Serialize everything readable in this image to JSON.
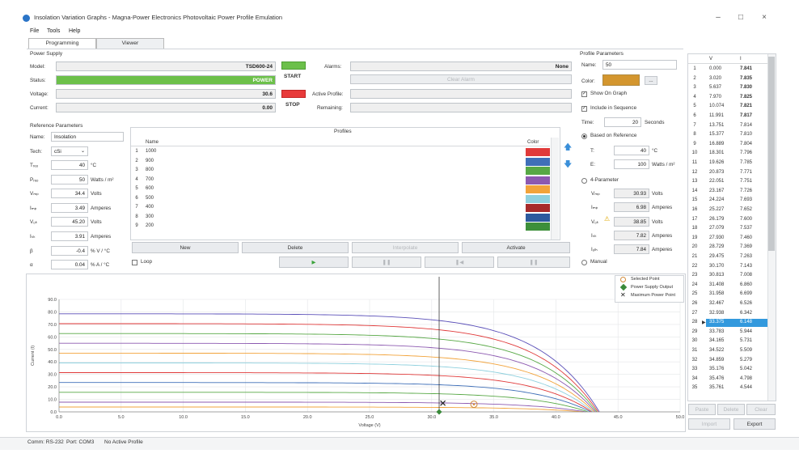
{
  "window": {
    "title": "Insolation Variation Graphs - Magna-Power Electronics Photovoltaic Power Profile Emulation",
    "minimize": "–",
    "maximize": "□",
    "close": "×"
  },
  "menu": [
    "File",
    "Tools",
    "Help"
  ],
  "tabs": [
    "Programming",
    "Viewer"
  ],
  "power_supply": {
    "section": "Power Supply",
    "model_label": "Model:",
    "model": "TSD600-24",
    "status_label": "Status:",
    "status": "POWER",
    "voltage_label": "Voltage:",
    "voltage": "30.6",
    "current_label": "Current:",
    "current": "0.00",
    "start": "START",
    "stop": "STOP",
    "alarms_label": "Alarms:",
    "alarms": "None",
    "clear_alarm": "Clear Alarm",
    "active_profile_label": "Active Profile:",
    "remaining_label": "Remaining:",
    "colors": {
      "green": "#6cc04a",
      "red": "#e83a3a"
    }
  },
  "reference": {
    "section": "Reference Parameters",
    "name_label": "Name:",
    "name": "Insolation",
    "tech_label": "Tech:",
    "tech": "cSi",
    "rows": [
      {
        "label": "Tᵣₑₒ",
        "value": "40",
        "unit": "°C"
      },
      {
        "label": "Pᵣₑₒ",
        "value": "50",
        "unit": "Watts / m²"
      },
      {
        "label": "Vₘₚ",
        "value": "34.4",
        "unit": "Volts"
      },
      {
        "label": "Iₘₚ",
        "value": "3.49",
        "unit": "Amperes"
      },
      {
        "label": "Vₒₖ",
        "value": "45.20",
        "unit": "Volts"
      },
      {
        "label": "Iₛₖ",
        "value": "3.91",
        "unit": "Amperes"
      },
      {
        "label": "β",
        "value": "-0.4",
        "unit": "% V / °C"
      },
      {
        "label": "α",
        "value": "0.04",
        "unit": "% A / °C"
      }
    ]
  },
  "profiles": {
    "title": "Profiles",
    "col_name": "Name",
    "col_color": "Color",
    "rows": [
      {
        "num": "1",
        "name": "1000",
        "color": "#e03a3a"
      },
      {
        "num": "2",
        "name": "900",
        "color": "#3f6fb8"
      },
      {
        "num": "3",
        "name": "800",
        "color": "#57a845"
      },
      {
        "num": "4",
        "name": "700",
        "color": "#8c59b0"
      },
      {
        "num": "5",
        "name": "600",
        "color": "#f2a33a"
      },
      {
        "num": "6",
        "name": "500",
        "color": "#8fd0de"
      },
      {
        "num": "7",
        "name": "400",
        "color": "#a62b2b"
      },
      {
        "num": "8",
        "name": "300",
        "color": "#2d5a9e"
      },
      {
        "num": "9",
        "name": "200",
        "color": "#3d8f3a"
      }
    ],
    "buttons": [
      "New",
      "Delete",
      "Interpolate",
      "Activate"
    ],
    "loop_label": "Loop"
  },
  "profile_params": {
    "section": "Profile Parameters",
    "name_label": "Name:",
    "name": "50",
    "color_label": "Color:",
    "color": "#d4962e",
    "more": "...",
    "show_on_graph": "Show On Graph",
    "include_in_sequence": "Include in Sequence",
    "time_label": "Time:",
    "time": "20",
    "time_unit": "Seconds",
    "based_on_reference": "Based on Reference",
    "t_label": "T:",
    "t": "40",
    "t_unit": "°C",
    "e_label": "E:",
    "e": "100",
    "e_unit": "Watts / m²",
    "four_param": "4-Parameter",
    "fp_rows": [
      {
        "label": "Vₘₚ",
        "value": "30.93",
        "unit": "Volts"
      },
      {
        "label": "Iₘₚ",
        "value": "6.98",
        "unit": "Amperes"
      },
      {
        "label": "Vₒₖ",
        "value": "38.85",
        "unit": "Volts"
      },
      {
        "label": "Iₛₖ",
        "value": "7.82",
        "unit": "Amperes"
      },
      {
        "label": "Iₒₗₕ",
        "value": "7.84",
        "unit": "Amperes"
      }
    ],
    "manual": "Manual"
  },
  "vi_table": {
    "col_v": "V",
    "col_i": "I",
    "rows": [
      [
        "1",
        "0.000",
        "7.841"
      ],
      [
        "2",
        "3.020",
        "7.835"
      ],
      [
        "3",
        "5.637",
        "7.830"
      ],
      [
        "4",
        "7.970",
        "7.825"
      ],
      [
        "5",
        "10.074",
        "7.821"
      ],
      [
        "6",
        "11.991",
        "7.817"
      ],
      [
        "7",
        "13.751",
        "7.814"
      ],
      [
        "8",
        "15.377",
        "7.810"
      ],
      [
        "9",
        "16.889",
        "7.804"
      ],
      [
        "10",
        "18.301",
        "7.796"
      ],
      [
        "11",
        "19.626",
        "7.785"
      ],
      [
        "12",
        "20.873",
        "7.771"
      ],
      [
        "13",
        "22.051",
        "7.751"
      ],
      [
        "14",
        "23.167",
        "7.726"
      ],
      [
        "15",
        "24.224",
        "7.693"
      ],
      [
        "16",
        "25.227",
        "7.652"
      ],
      [
        "17",
        "26.179",
        "7.600"
      ],
      [
        "18",
        "27.079",
        "7.537"
      ],
      [
        "19",
        "27.930",
        "7.460"
      ],
      [
        "20",
        "28.729",
        "7.369"
      ],
      [
        "21",
        "29.475",
        "7.263"
      ],
      [
        "22",
        "30.170",
        "7.143"
      ],
      [
        "23",
        "30.813",
        "7.008"
      ],
      [
        "24",
        "31.408",
        "6.860"
      ],
      [
        "25",
        "31.958",
        "6.699"
      ],
      [
        "26",
        "32.467",
        "6.526"
      ],
      [
        "27",
        "32.938",
        "6.342"
      ],
      [
        "28",
        "33.375",
        "6.148"
      ],
      [
        "29",
        "33.783",
        "5.944"
      ],
      [
        "30",
        "34.165",
        "5.731"
      ],
      [
        "31",
        "34.522",
        "5.509"
      ],
      [
        "32",
        "34.859",
        "5.279"
      ],
      [
        "33",
        "35.176",
        "5.042"
      ],
      [
        "34",
        "35.476",
        "4.798"
      ],
      [
        "35",
        "35.761",
        "4.544"
      ]
    ],
    "selected_row": 27,
    "buttons": [
      "Paste",
      "Delete",
      "Clear",
      "Import",
      "Export"
    ],
    "disabled_buttons": [
      "Paste",
      "Delete",
      "Clear",
      "Import"
    ]
  },
  "legend": {
    "selected_point": "Selected Point",
    "power_supply_output": "Power Supply Output",
    "maximum_power_point": "Maximum Power Point"
  },
  "chart_data": {
    "type": "line",
    "xlabel": "Voltage (V)",
    "ylabel": "Current (I)",
    "xlim": [
      0,
      50
    ],
    "ylim": [
      0,
      90
    ],
    "x_ticks": [
      "0.0",
      "5.0",
      "10.0",
      "15.0",
      "20.0",
      "25.0",
      "30.0",
      "35.0",
      "40.0",
      "45.0",
      "50.0"
    ],
    "y_ticks": [
      "0.0",
      "10.0",
      "20.0",
      "30.0",
      "40.0",
      "50.0",
      "60.0",
      "70.0",
      "80.0",
      "90.0"
    ],
    "series": [
      {
        "color": "#5a4fb8",
        "isc": 78.5,
        "voc": 43.5
      },
      {
        "color": "#e03a3a",
        "isc": 70.6,
        "voc": 43.4
      },
      {
        "color": "#57a845",
        "isc": 62.7,
        "voc": 43.3
      },
      {
        "color": "#8c59b0",
        "isc": 54.9,
        "voc": 43.2
      },
      {
        "color": "#f2a33a",
        "isc": 47.0,
        "voc": 43.1
      },
      {
        "color": "#8fd0de",
        "isc": 39.2,
        "voc": 43.0
      },
      {
        "color": "#e03a3a",
        "isc": 31.4,
        "voc": 42.9
      },
      {
        "color": "#3f6fb8",
        "isc": 23.5,
        "voc": 42.8
      },
      {
        "color": "#57a845",
        "isc": 15.7,
        "voc": 42.6
      },
      {
        "color": "#8c59b0",
        "isc": 7.8,
        "voc": 42.4
      },
      {
        "color": "#f2a33a",
        "isc": 3.9,
        "voc": 42.2
      }
    ],
    "cursor_x": 30.6,
    "selected_point": [
      33.4,
      6.1
    ],
    "power_supply_output": [
      30.6,
      0.0
    ],
    "maximum_power_point": [
      30.9,
      7.0
    ]
  },
  "status_bar": {
    "comm": "Comm: RS-232",
    "port": "Port: COM3",
    "profile": "No Active Profile"
  }
}
